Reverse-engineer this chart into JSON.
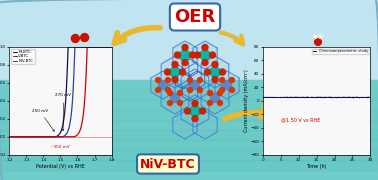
{
  "bg_color_top": "#c8e8f0",
  "bg_color_bottom": "#80d8d0",
  "border_color": "#7ab0c8",
  "title_oer": "OER",
  "title_niVBTC": "NiV-BTC",
  "left_plot": {
    "xlabel": "Potential (V) vs RHE",
    "ylabel": "Current density (A/cm²)",
    "xlim": [
      1.2,
      1.8
    ],
    "ylim": [
      -0.02,
      0.1
    ],
    "bg_color": "#f8f8f8"
  },
  "right_plot": {
    "xlabel": "Time (h)",
    "ylabel": "Current density (mA/cm²)",
    "xlim": [
      0,
      30
    ],
    "ylim": [
      -80,
      80
    ],
    "annotation": "@1.50 V vs RHE",
    "legend": [
      "Chronoamperometric study"
    ],
    "stable_current": 5,
    "bg_color": "#f8f8f8"
  },
  "arrow_color": "#e8b830",
  "o2_color": "#cc1100",
  "water_o_color": "#cc1100",
  "water_h_color": "#ffffff",
  "mof_ring_color": "#3a7acc",
  "mof_ni_color": "#00c8c8",
  "mof_o_color": "#cc2200",
  "mof_c_color": "#3a5a8a"
}
